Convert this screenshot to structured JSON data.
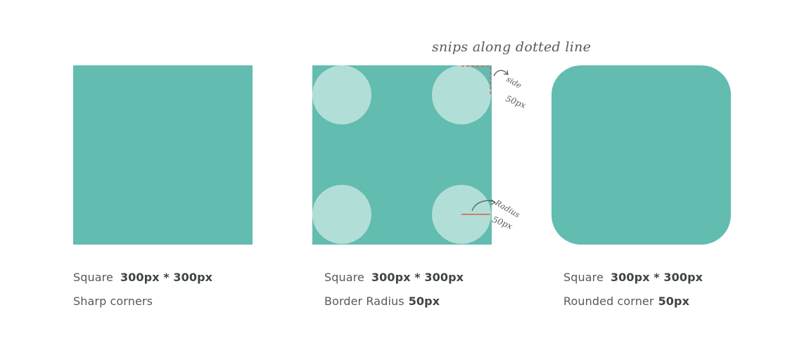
{
  "colors": {
    "square_fill": "#62bcb0",
    "corner_circle_fill": "#b1dfd7",
    "snip_dashed_line": "#e05a4f",
    "radius_line": "#e05a4f",
    "arrow": "#555a5c",
    "caption_text": "#555a5c"
  },
  "annotation": {
    "snip_note": "snips along dotted line",
    "side_label": "side",
    "side_value": "50px",
    "radius_label": "Radius",
    "radius_value": "50px"
  },
  "columns": [
    {
      "shape": "square-sharp",
      "line1_label": "Square",
      "line1_value": "300px * 300px",
      "line2_label": "Sharp corners",
      "line2_value": ""
    },
    {
      "shape": "square-with-corner-circles",
      "line1_label": "Square",
      "line1_value": "300px * 300px",
      "line2_label": "Border Radius",
      "line2_value": "50px"
    },
    {
      "shape": "rounded-square",
      "line1_label": "Square",
      "line1_value": "300px * 300px",
      "line2_label": "Rounded corner",
      "line2_value": "50px"
    }
  ]
}
